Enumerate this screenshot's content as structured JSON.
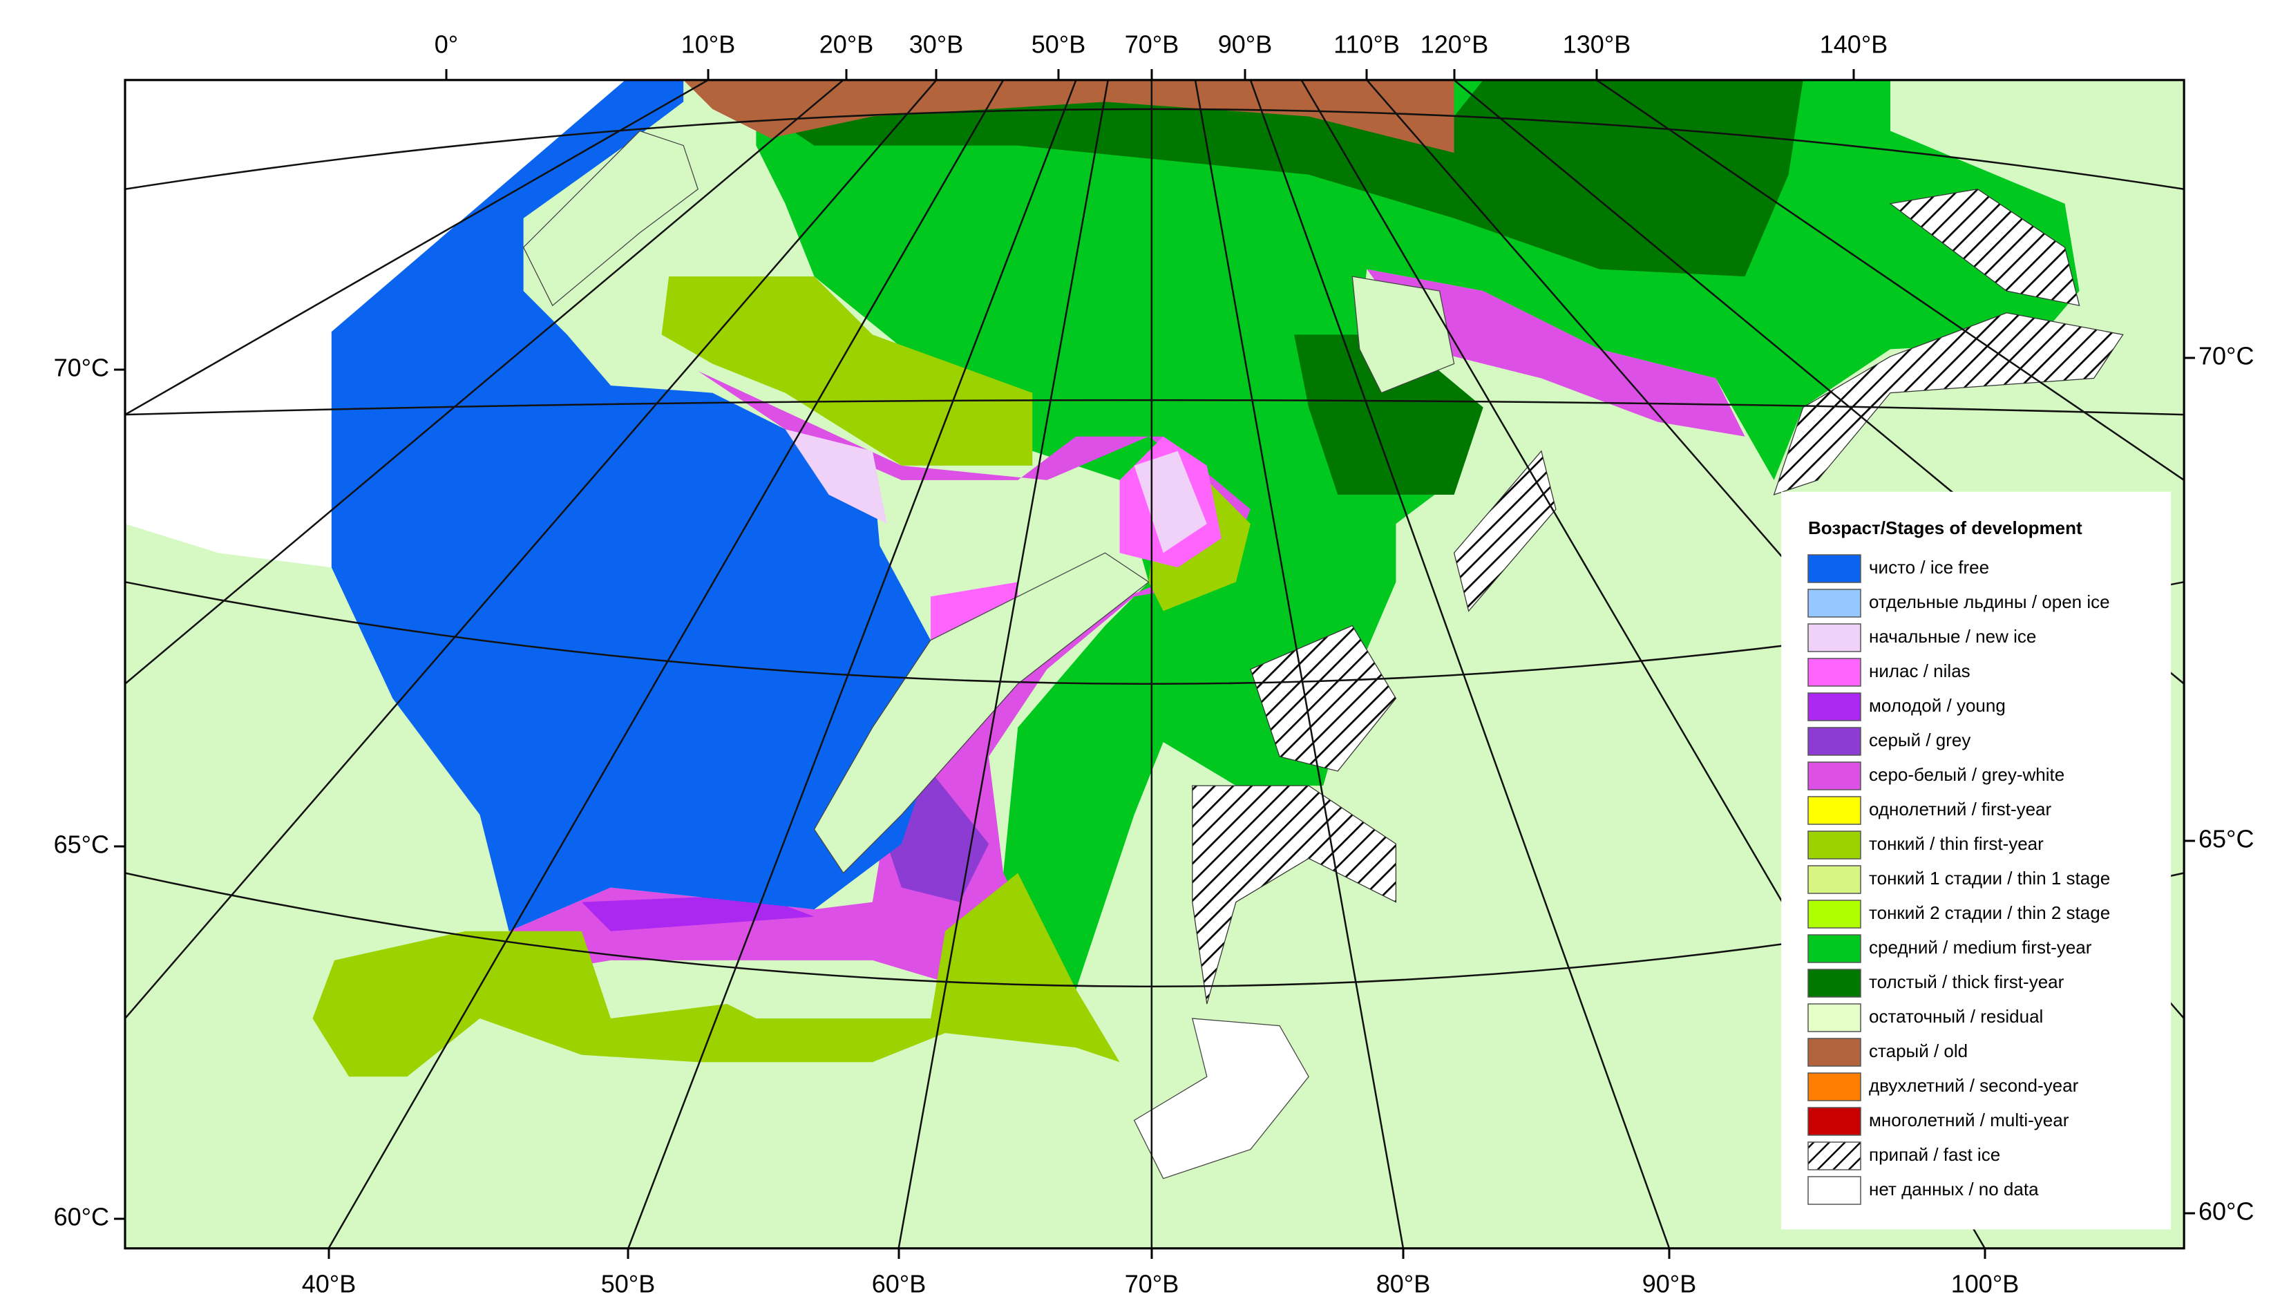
{
  "map": {
    "top_labels": [
      "0°",
      "10°В",
      "20°В",
      "30°В",
      "50°В",
      "70°В",
      "90°В",
      "110°В",
      "120°В",
      "130°В",
      "140°В"
    ],
    "bottom_labels": [
      "40°В",
      "50°В",
      "60°В",
      "70°В",
      "80°В",
      "90°В",
      "100°В"
    ],
    "left_labels": [
      "70°С",
      "65°С",
      "60°С"
    ],
    "right_labels": [
      "70°С",
      "65°С",
      "60°С"
    ]
  },
  "legend": {
    "title": "Возраст/Stages of development",
    "items": [
      {
        "label": "чисто / ice free",
        "color": "#0a64f0"
      },
      {
        "label": "отдельные льдины / open ice",
        "color": "#96c8ff"
      },
      {
        "label": "начальные / new ice",
        "color": "#f0d2f8"
      },
      {
        "label": "нилас / nilas",
        "color": "#ff64ff"
      },
      {
        "label": "молодой / young",
        "color": "#aa28f0"
      },
      {
        "label": "серый / grey",
        "color": "#8c3cd2"
      },
      {
        "label": "серо-белый / grey-white",
        "color": "#dc50e6"
      },
      {
        "label": "однолетний / first-year",
        "color": "#ffff00"
      },
      {
        "label": "тонкий / thin first-year",
        "color": "#9bd200"
      },
      {
        "label": "тонкий 1 стадии / thin 1 stage",
        "color": "#d7f582"
      },
      {
        "label": "тонкий 2 стадии / thin 2 stage",
        "color": "#afff00"
      },
      {
        "label": "средний / medium first-year",
        "color": "#00c81e"
      },
      {
        "label": "толстый / thick first-year",
        "color": "#007800"
      },
      {
        "label": "остаточный / residual",
        "color": "#e6ffc8"
      },
      {
        "label": "старый / old",
        "color": "#b4643c"
      },
      {
        "label": "двухлетний / second-year",
        "color": "#ff7d00"
      },
      {
        "label": "многолетний / multi-year",
        "color": "#c80000"
      },
      {
        "label": "припай / fast ice",
        "color": "#ffffff",
        "pattern": "hatch"
      },
      {
        "label": "нет данных / no data",
        "color": "#ffffff"
      }
    ]
  }
}
